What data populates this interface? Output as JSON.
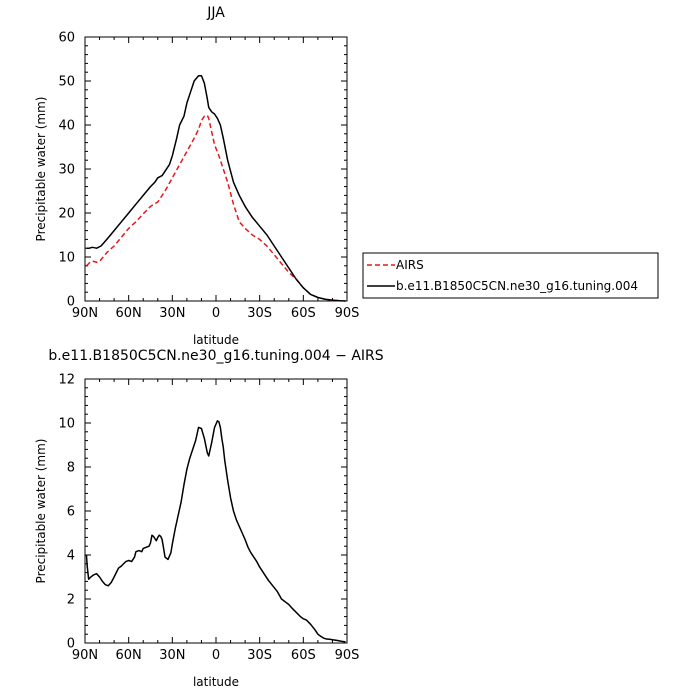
{
  "chart_data": [
    {
      "type": "line",
      "title": "JJA",
      "xlabel": "latitude",
      "ylabel": "Precipitable water (mm)",
      "xlim": [
        90,
        -90
      ],
      "ylim": [
        0,
        60
      ],
      "x_ticks": [
        90,
        60,
        30,
        0,
        -30,
        -60,
        -90
      ],
      "x_tick_labels": [
        "90N",
        "60N",
        "30N",
        "0",
        "30S",
        "60S",
        "90S"
      ],
      "y_ticks": [
        0,
        10,
        20,
        30,
        40,
        50,
        60
      ],
      "y_tick_labels": [
        "0",
        "10",
        "20",
        "30",
        "40",
        "50",
        "60"
      ],
      "legend_position": "right",
      "series": [
        {
          "name": "AIRS",
          "color": "#e41a1c",
          "dash": "dashed",
          "x": [
            89,
            88,
            86,
            84,
            82,
            80,
            78,
            75,
            70,
            65,
            60,
            55,
            50,
            45,
            40,
            35,
            30,
            25,
            20,
            15,
            12,
            10,
            8,
            6,
            5,
            3,
            1,
            -2,
            -5,
            -8,
            -12,
            -16,
            -20,
            -25,
            -30,
            -35,
            -40,
            -45,
            -50,
            -55,
            -60,
            -65,
            -70,
            -75,
            -80,
            -85,
            -89
          ],
          "y": [
            8,
            8.3,
            9,
            9,
            8.8,
            9,
            9.8,
            11,
            12.5,
            14.5,
            16.5,
            18,
            19.8,
            21.5,
            22.5,
            25,
            28,
            31,
            34,
            37,
            39,
            41,
            42,
            42.2,
            41.5,
            38.5,
            35.5,
            33,
            30,
            27,
            22,
            18,
            16.5,
            15,
            14,
            12.5,
            10.5,
            8.5,
            6.5,
            5,
            3,
            1.5,
            0.8,
            0.4,
            0.1,
            0.05,
            0
          ]
        },
        {
          "name": "b.e11.B1850C5CN.ne30_g16.tuning.004",
          "color": "#000000",
          "dash": "solid",
          "x": [
            89,
            87,
            85,
            82,
            79,
            75,
            70,
            65,
            60,
            55,
            50,
            45,
            42,
            40,
            37,
            35,
            32,
            30,
            27,
            25,
            22,
            20,
            17,
            15,
            12,
            10,
            8,
            6,
            5,
            3,
            1,
            -1,
            -3,
            -5,
            -8,
            -12,
            -16,
            -20,
            -25,
            -30,
            -35,
            -40,
            -45,
            -50,
            -55,
            -60,
            -65,
            -70,
            -75,
            -80,
            -85,
            -89
          ],
          "y": [
            12,
            12,
            12.2,
            12,
            12.5,
            14,
            16,
            18,
            20,
            22,
            24,
            26,
            27,
            28,
            28.5,
            29.5,
            31,
            33,
            37,
            40,
            42,
            45,
            48,
            50,
            51.2,
            51.2,
            49.5,
            46,
            44,
            43,
            42.5,
            41.5,
            40,
            37,
            32,
            27,
            24,
            21.5,
            19,
            17,
            15,
            12.5,
            10,
            7.5,
            5,
            3,
            1.5,
            0.8,
            0.4,
            0.2,
            0.05,
            0
          ]
        }
      ]
    },
    {
      "type": "line",
      "title": "b.e11.B1850C5CN.ne30_g16.tuning.004 − AIRS",
      "xlabel": "latitude",
      "ylabel": "Precipitable water (mm)",
      "xlim": [
        90,
        -90
      ],
      "ylim": [
        0,
        12
      ],
      "x_ticks": [
        90,
        60,
        30,
        0,
        -30,
        -60,
        -90
      ],
      "x_tick_labels": [
        "90N",
        "60N",
        "30N",
        "0",
        "30S",
        "60S",
        "90S"
      ],
      "y_ticks": [
        0,
        2,
        4,
        6,
        8,
        10,
        12
      ],
      "y_tick_labels": [
        "0",
        "2",
        "4",
        "6",
        "8",
        "10",
        "12"
      ],
      "series": [
        {
          "color": "#000000",
          "dash": "solid",
          "x": [
            89,
            88.5,
            87.5,
            86,
            84,
            82,
            80,
            78,
            76,
            74,
            72,
            70,
            67,
            65,
            62,
            60,
            58,
            56,
            55,
            53,
            51,
            50,
            48,
            46,
            45,
            44,
            43,
            42,
            41,
            40,
            39,
            38,
            37,
            36,
            35,
            33,
            31,
            30,
            28,
            26,
            24,
            22,
            20,
            18,
            16,
            14,
            12,
            10,
            8,
            6,
            5,
            3,
            1,
            -1,
            -2,
            -3,
            -4,
            -5,
            -6,
            -8,
            -10,
            -12,
            -14,
            -16,
            -18,
            -20,
            -22,
            -24,
            -26,
            -28,
            -30,
            -33,
            -36,
            -39,
            -42,
            -45,
            -48,
            -50,
            -52,
            -55,
            -58,
            -60,
            -62,
            -65,
            -68,
            -70,
            -72,
            -74,
            -76,
            -78,
            -80,
            -83,
            -86,
            -89
          ],
          "y": [
            4,
            3.5,
            2.9,
            3,
            3.1,
            3.15,
            3,
            2.8,
            2.65,
            2.6,
            2.75,
            3,
            3.4,
            3.5,
            3.7,
            3.75,
            3.7,
            3.9,
            4.15,
            4.2,
            4.15,
            4.3,
            4.35,
            4.4,
            4.55,
            4.9,
            4.85,
            4.75,
            4.65,
            4.8,
            4.9,
            4.85,
            4.7,
            4.3,
            3.9,
            3.8,
            4.1,
            4.5,
            5.2,
            5.8,
            6.4,
            7.2,
            7.9,
            8.4,
            8.8,
            9.2,
            9.8,
            9.75,
            9.3,
            8.65,
            8.5,
            9.1,
            9.8,
            10.1,
            10.05,
            9.8,
            9.3,
            8.9,
            8.3,
            7.4,
            6.6,
            6,
            5.6,
            5.3,
            5,
            4.7,
            4.35,
            4.1,
            3.9,
            3.7,
            3.45,
            3.15,
            2.85,
            2.6,
            2.35,
            2.0,
            1.85,
            1.75,
            1.6,
            1.4,
            1.2,
            1.1,
            1.05,
            0.85,
            0.6,
            0.4,
            0.3,
            0.22,
            0.18,
            0.17,
            0.15,
            0.12,
            0.08,
            0.05
          ]
        }
      ]
    }
  ]
}
